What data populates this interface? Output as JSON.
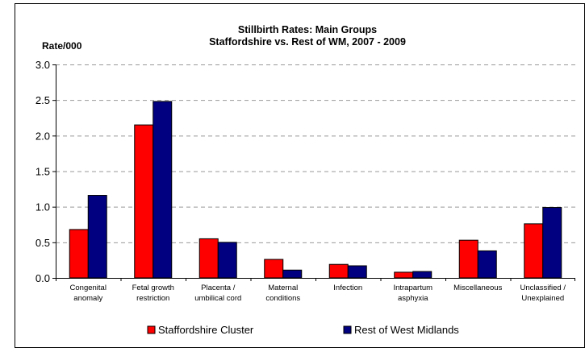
{
  "chart_data": {
    "type": "bar",
    "title": "Stillbirth Rates: Main Groups",
    "subtitle": "Staffordshire vs. Rest of WM, 2007 - 2009",
    "ylabel": "Rate/000",
    "xlabel": "",
    "ylim": [
      0,
      3.0
    ],
    "yticks": [
      "0.0",
      "0.5",
      "1.0",
      "1.5",
      "2.0",
      "2.5",
      "3.0"
    ],
    "grid": "horizontal dashed",
    "legend_position": "bottom",
    "categories": [
      [
        "Congenital",
        "anomaly"
      ],
      [
        "Fetal growth",
        "restriction"
      ],
      [
        "Placenta /",
        "umbilical cord"
      ],
      [
        "Maternal",
        "conditions"
      ],
      [
        "Infection"
      ],
      [
        "Intrapartum",
        "asphyxia"
      ],
      [
        "Miscellaneous"
      ],
      [
        "Unclassified /",
        "Unexplained"
      ]
    ],
    "series": [
      {
        "name": "Staffordshire Cluster",
        "color": "#ff0000",
        "values": [
          0.68,
          2.15,
          0.55,
          0.26,
          0.19,
          0.08,
          0.53,
          0.76
        ]
      },
      {
        "name": "Rest of West Midlands",
        "color": "#000080",
        "values": [
          1.16,
          2.48,
          0.5,
          0.11,
          0.17,
          0.09,
          0.38,
          0.99
        ]
      }
    ]
  }
}
